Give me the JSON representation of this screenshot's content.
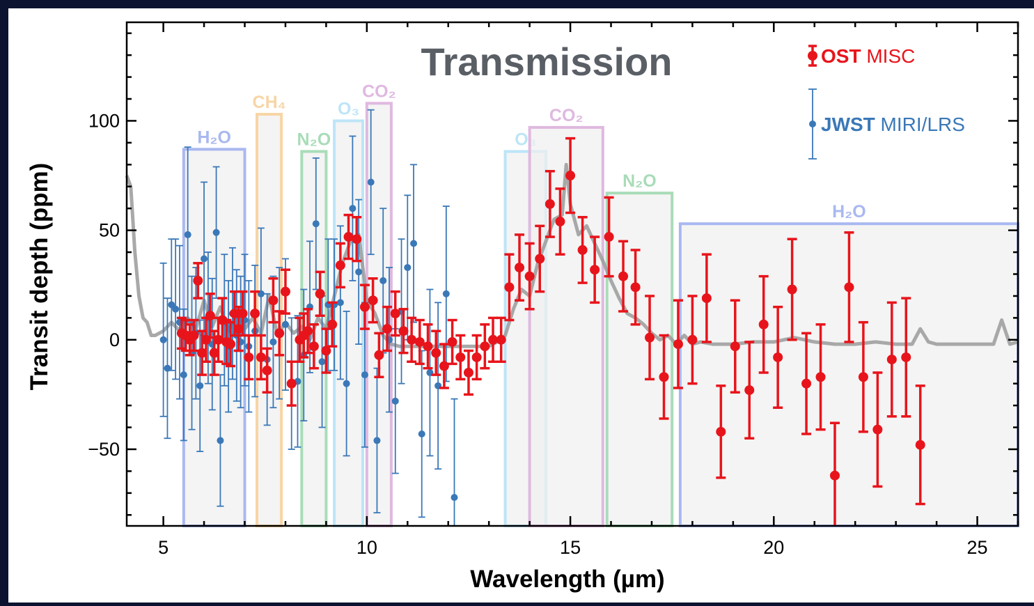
{
  "chart_data": {
    "type": "scatter",
    "title": "Transmission",
    "xlabel": "Wavelength (µm)",
    "ylabel": "Transit depth (ppm)",
    "xlim": [
      4.1,
      26.0
    ],
    "ylim": [
      -85,
      145
    ],
    "xticks": [
      5,
      10,
      15,
      20,
      25
    ],
    "yticks": [
      -50,
      0,
      50,
      100
    ],
    "xtick_labels": [
      "5",
      "10",
      "15",
      "20",
      "25"
    ],
    "ytick_labels": [
      "−50",
      "0",
      "50",
      "100"
    ],
    "legend": {
      "position": "top-right",
      "entries": [
        {
          "bold": "OST",
          "rest": " MISC",
          "color": "#e8141b"
        },
        {
          "bold": "JWST",
          "rest": " MIRI/LRS",
          "color": "#3a78b8"
        }
      ]
    },
    "bands": [
      {
        "label": "H₂O",
        "x0": 5.5,
        "x1": 7.0,
        "top": 87,
        "color": "#a9b8f0"
      },
      {
        "label": "CH₄",
        "x0": 7.3,
        "x1": 7.9,
        "top": 103,
        "color": "#f8d5a6"
      },
      {
        "label": "N₂O",
        "x0": 8.4,
        "x1": 9.0,
        "top": 86,
        "color": "#a8dcb8"
      },
      {
        "label": "O₃",
        "x0": 9.2,
        "x1": 9.9,
        "top": 100,
        "color": "#bde5f7"
      },
      {
        "label": "CO₂",
        "x0": 10.0,
        "x1": 10.6,
        "top": 108,
        "color": "#dfb9e0"
      },
      {
        "label": "O₃",
        "x0": 13.4,
        "x1": 14.4,
        "top": 86,
        "color": "#bde5f7"
      },
      {
        "label": "CO₂",
        "x0": 14.0,
        "x1": 15.8,
        "top": 97,
        "color": "#dfb9e0"
      },
      {
        "label": "N₂O",
        "x0": 15.9,
        "x1": 17.5,
        "top": 67,
        "color": "#a8dcb8"
      },
      {
        "label": "H₂O",
        "x0": 17.7,
        "x1": 26.0,
        "top": 53,
        "color": "#a9b8f0"
      }
    ],
    "series": [
      {
        "name": "OST MISC",
        "color": "#e8141b",
        "points": [
          [
            5.45,
            3,
            7
          ],
          [
            5.55,
            2,
            7
          ],
          [
            5.65,
            0,
            7
          ],
          [
            5.75,
            2,
            7
          ],
          [
            5.85,
            27,
            8
          ],
          [
            5.95,
            -6,
            10
          ],
          [
            6.05,
            0,
            10
          ],
          [
            6.15,
            11,
            10
          ],
          [
            6.25,
            -6,
            10
          ],
          [
            6.35,
            0,
            10
          ],
          [
            6.45,
            9,
            10
          ],
          [
            6.55,
            -1,
            10
          ],
          [
            6.65,
            -2,
            10
          ],
          [
            6.75,
            12,
            10
          ],
          [
            6.85,
            5,
            10
          ],
          [
            6.95,
            12,
            10
          ],
          [
            7.1,
            -8,
            10
          ],
          [
            7.25,
            12,
            10
          ],
          [
            7.4,
            -8,
            10
          ],
          [
            7.55,
            -14,
            10
          ],
          [
            7.7,
            18,
            10
          ],
          [
            7.85,
            3,
            10
          ],
          [
            8.0,
            22,
            10
          ],
          [
            8.15,
            -20,
            10
          ],
          [
            8.35,
            0,
            10
          ],
          [
            8.45,
            2,
            10
          ],
          [
            8.55,
            4,
            10
          ],
          [
            8.7,
            -3,
            10
          ],
          [
            8.85,
            21,
            10
          ],
          [
            9.0,
            -5,
            10
          ],
          [
            9.15,
            7,
            10
          ],
          [
            9.35,
            34,
            10
          ],
          [
            9.55,
            47,
            10
          ],
          [
            9.75,
            46,
            10
          ],
          [
            9.95,
            15,
            10
          ],
          [
            10.15,
            18,
            10
          ],
          [
            10.3,
            -7,
            10
          ],
          [
            10.5,
            5,
            10
          ],
          [
            10.7,
            12,
            10
          ],
          [
            10.9,
            4,
            10
          ],
          [
            11.1,
            0,
            10
          ],
          [
            11.3,
            -1,
            10
          ],
          [
            11.5,
            -3,
            10
          ],
          [
            11.7,
            -6,
            10
          ],
          [
            11.9,
            -12,
            10
          ],
          [
            12.1,
            -1,
            10
          ],
          [
            12.3,
            -8,
            10
          ],
          [
            12.5,
            -15,
            10
          ],
          [
            12.7,
            -8,
            10
          ],
          [
            12.9,
            -3,
            10
          ],
          [
            13.1,
            0,
            10
          ],
          [
            13.3,
            0,
            10
          ],
          [
            13.5,
            24,
            15
          ],
          [
            13.75,
            33,
            15
          ],
          [
            14.0,
            29,
            15
          ],
          [
            14.25,
            37,
            15
          ],
          [
            14.5,
            62,
            15
          ],
          [
            14.75,
            54,
            15
          ],
          [
            15.0,
            75,
            17
          ],
          [
            15.3,
            41,
            15
          ],
          [
            15.6,
            32,
            15
          ],
          [
            15.95,
            47,
            18
          ],
          [
            16.3,
            29,
            16
          ],
          [
            16.6,
            24,
            17
          ],
          [
            16.95,
            1,
            19
          ],
          [
            17.3,
            -17,
            19
          ],
          [
            17.65,
            -2,
            20
          ],
          [
            18.0,
            0,
            20
          ],
          [
            18.35,
            19,
            20
          ],
          [
            18.7,
            -42,
            21
          ],
          [
            19.05,
            -3,
            21
          ],
          [
            19.4,
            -23,
            22
          ],
          [
            19.75,
            7,
            22
          ],
          [
            20.1,
            -8,
            23
          ],
          [
            20.45,
            23,
            23
          ],
          [
            20.8,
            -20,
            23
          ],
          [
            21.15,
            -17,
            24
          ],
          [
            21.5,
            -62,
            24
          ],
          [
            21.85,
            24,
            25
          ],
          [
            22.2,
            -17,
            25
          ],
          [
            22.55,
            -41,
            26
          ],
          [
            22.9,
            -9,
            26
          ],
          [
            23.25,
            -8,
            27
          ],
          [
            23.6,
            -48,
            27
          ]
        ]
      },
      {
        "name": "JWST MIRI/LRS",
        "color": "#3a78b8",
        "points": [
          [
            5.0,
            0,
            35
          ],
          [
            5.1,
            -13,
            32
          ],
          [
            5.2,
            16,
            30
          ],
          [
            5.3,
            14,
            32
          ],
          [
            5.4,
            8,
            35
          ],
          [
            5.5,
            -16,
            30
          ],
          [
            5.6,
            48,
            40
          ],
          [
            5.7,
            -6,
            35
          ],
          [
            5.8,
            3,
            30
          ],
          [
            5.9,
            -21,
            30
          ],
          [
            6.0,
            37,
            35
          ],
          [
            6.1,
            10,
            30
          ],
          [
            6.2,
            -2,
            30
          ],
          [
            6.3,
            49,
            30
          ],
          [
            6.4,
            -46,
            30
          ],
          [
            6.5,
            9,
            30
          ],
          [
            6.6,
            -3,
            30
          ],
          [
            6.7,
            12,
            30
          ],
          [
            6.8,
            2,
            30
          ],
          [
            6.9,
            -1,
            30
          ],
          [
            7.0,
            9,
            30
          ],
          [
            7.1,
            -3,
            30
          ],
          [
            7.25,
            4,
            30
          ],
          [
            7.4,
            21,
            30
          ],
          [
            7.55,
            -9,
            30
          ],
          [
            7.7,
            -1,
            30
          ],
          [
            7.85,
            3,
            30
          ],
          [
            8.0,
            7,
            30
          ],
          [
            8.15,
            -20,
            30
          ],
          [
            8.3,
            -19,
            30
          ],
          [
            8.45,
            -7,
            30
          ],
          [
            8.6,
            15,
            30
          ],
          [
            8.75,
            53,
            30
          ],
          [
            8.9,
            -10,
            30
          ],
          [
            9.05,
            16,
            30
          ],
          [
            9.2,
            16,
            30
          ],
          [
            9.35,
            17,
            35
          ],
          [
            9.5,
            -20,
            33
          ],
          [
            9.65,
            60,
            33
          ],
          [
            9.8,
            31,
            33
          ],
          [
            9.95,
            -16,
            33
          ],
          [
            10.1,
            72,
            33
          ],
          [
            10.25,
            -46,
            33
          ],
          [
            10.4,
            27,
            33
          ],
          [
            10.55,
            0,
            33
          ],
          [
            10.7,
            -28,
            33
          ],
          [
            10.85,
            13,
            33
          ],
          [
            11.0,
            33,
            33
          ],
          [
            11.15,
            44,
            36
          ],
          [
            11.35,
            -43,
            38
          ],
          [
            11.55,
            -15,
            38
          ],
          [
            11.75,
            -21,
            38
          ],
          [
            11.95,
            21,
            40
          ],
          [
            12.15,
            -72,
            45
          ]
        ]
      }
    ],
    "model_curve": [
      [
        4.1,
        75
      ],
      [
        4.2,
        70
      ],
      [
        4.3,
        40
      ],
      [
        4.4,
        20
      ],
      [
        4.5,
        10
      ],
      [
        4.6,
        8
      ],
      [
        4.7,
        2
      ],
      [
        4.8,
        2
      ],
      [
        5.0,
        4
      ],
      [
        5.2,
        8
      ],
      [
        5.4,
        4
      ],
      [
        5.6,
        10
      ],
      [
        5.8,
        5
      ],
      [
        6.0,
        18
      ],
      [
        6.2,
        6
      ],
      [
        6.4,
        15
      ],
      [
        6.6,
        4
      ],
      [
        6.8,
        12
      ],
      [
        7.0,
        5
      ],
      [
        7.2,
        10
      ],
      [
        7.4,
        3
      ],
      [
        7.6,
        20
      ],
      [
        7.8,
        2
      ],
      [
        8.0,
        8
      ],
      [
        8.2,
        3
      ],
      [
        8.4,
        6
      ],
      [
        8.6,
        0
      ],
      [
        8.8,
        10
      ],
      [
        9.0,
        5
      ],
      [
        9.2,
        20
      ],
      [
        9.4,
        35
      ],
      [
        9.6,
        45
      ],
      [
        9.8,
        48
      ],
      [
        10.0,
        18
      ],
      [
        10.2,
        12
      ],
      [
        10.4,
        2
      ],
      [
        10.6,
        -2
      ],
      [
        10.8,
        -3
      ],
      [
        11.0,
        -3
      ],
      [
        11.5,
        -3
      ],
      [
        12.0,
        -3
      ],
      [
        12.5,
        -3
      ],
      [
        13.0,
        -3
      ],
      [
        13.2,
        -1
      ],
      [
        13.4,
        2
      ],
      [
        13.6,
        14
      ],
      [
        13.8,
        23
      ],
      [
        14.0,
        20
      ],
      [
        14.2,
        35
      ],
      [
        14.4,
        45
      ],
      [
        14.6,
        55
      ],
      [
        14.8,
        57
      ],
      [
        14.9,
        80
      ],
      [
        15.0,
        62
      ],
      [
        15.2,
        48
      ],
      [
        15.4,
        52
      ],
      [
        15.6,
        44
      ],
      [
        15.8,
        36
      ],
      [
        16.0,
        27
      ],
      [
        16.2,
        19
      ],
      [
        16.4,
        12
      ],
      [
        16.6,
        10
      ],
      [
        16.8,
        7
      ],
      [
        17.0,
        3
      ],
      [
        17.2,
        0
      ],
      [
        17.4,
        2
      ],
      [
        17.6,
        -2
      ],
      [
        17.8,
        2
      ],
      [
        18.0,
        -2
      ],
      [
        18.2,
        -1
      ],
      [
        18.5,
        -2
      ],
      [
        19.0,
        -2
      ],
      [
        19.5,
        -1
      ],
      [
        20.0,
        -1
      ],
      [
        20.5,
        1
      ],
      [
        21.0,
        -1
      ],
      [
        21.5,
        -2
      ],
      [
        22.0,
        -2
      ],
      [
        22.5,
        -1
      ],
      [
        23.0,
        -2
      ],
      [
        23.4,
        -2
      ],
      [
        23.6,
        5
      ],
      [
        23.8,
        -1
      ],
      [
        24.0,
        -2
      ],
      [
        24.5,
        -2
      ],
      [
        25.0,
        -2
      ],
      [
        25.4,
        -2
      ],
      [
        25.6,
        9
      ],
      [
        25.8,
        -2
      ],
      [
        26.0,
        -1
      ]
    ]
  }
}
